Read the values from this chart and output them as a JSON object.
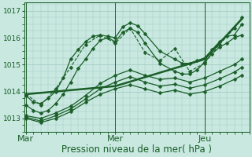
{
  "background_color": "#c8e8e0",
  "plot_bg_color": "#c8e8e0",
  "grid_major_color": "#a0c8c0",
  "grid_minor_color": "#a0c8c0",
  "line_color": "#1a5e28",
  "xlabel": "Pression niveau de la mer( hPa )",
  "xlabel_fontsize": 8.5,
  "ytick_values": [
    1013,
    1014,
    1015,
    1016,
    1017
  ],
  "ytick_fontsize": 6.5,
  "xtick_labels": [
    "Mar",
    "Mer",
    "Jeu"
  ],
  "xtick_positions": [
    0.0,
    1.0,
    2.0
  ],
  "xtick_fontsize": 8,
  "day_vlines": [
    0.0,
    1.0,
    2.0
  ],
  "xmin": -0.02,
  "xmax": 2.5,
  "ymin": 1012.5,
  "ymax": 1017.3,
  "series": [
    {
      "x": [
        0.0,
        0.083,
        0.167,
        0.25,
        0.333,
        0.417,
        0.5,
        0.583,
        0.667,
        0.75,
        0.833,
        0.917,
        1.0,
        1.083,
        1.167,
        1.25,
        1.333,
        1.5,
        1.667,
        1.75,
        1.833,
        1.917,
        2.0,
        2.083,
        2.167,
        2.25,
        2.333,
        2.417
      ],
      "y": [
        1013.85,
        1013.6,
        1013.55,
        1013.75,
        1014.0,
        1014.5,
        1015.2,
        1015.55,
        1015.85,
        1016.05,
        1016.1,
        1016.05,
        1016.0,
        1016.4,
        1016.55,
        1016.45,
        1016.15,
        1015.5,
        1015.2,
        1015.05,
        1015.05,
        1015.15,
        1015.25,
        1015.55,
        1015.85,
        1016.05,
        1016.1,
        1016.5
      ],
      "linestyle": "-",
      "linewidth": 0.9,
      "marker": "D",
      "markersize": 2.5,
      "zorder": 4
    },
    {
      "x": [
        0.0,
        0.167,
        0.333,
        0.5,
        0.667,
        0.833,
        1.0,
        1.167,
        1.333,
        1.5,
        1.667,
        1.833,
        2.0,
        2.167,
        2.333,
        2.417
      ],
      "y": [
        1013.9,
        1013.5,
        1014.1,
        1014.9,
        1015.75,
        1016.1,
        1015.8,
        1016.35,
        1015.45,
        1015.15,
        1015.6,
        1014.75,
        1015.05,
        1015.75,
        1016.35,
        1016.75
      ],
      "linestyle": "--",
      "linewidth": 0.8,
      "marker": "D",
      "markersize": 2.5,
      "zorder": 4
    },
    {
      "x": [
        0.0,
        0.083,
        0.167,
        0.25,
        0.333,
        0.417,
        0.5,
        0.583,
        0.667,
        0.75,
        0.833,
        0.917,
        1.0,
        1.083,
        1.167,
        1.25,
        1.333,
        1.5,
        1.667,
        1.75,
        1.833,
        1.917,
        2.0,
        2.083,
        2.167,
        2.25,
        2.333,
        2.417
      ],
      "y": [
        1013.5,
        1013.3,
        1013.2,
        1013.3,
        1013.55,
        1013.9,
        1014.35,
        1014.85,
        1015.2,
        1015.6,
        1015.9,
        1016.0,
        1015.85,
        1016.2,
        1016.35,
        1016.2,
        1015.8,
        1015.05,
        1014.75,
        1014.65,
        1014.65,
        1014.8,
        1015.1,
        1015.4,
        1015.65,
        1015.8,
        1016.0,
        1016.1
      ],
      "linestyle": "-",
      "linewidth": 0.9,
      "marker": "D",
      "markersize": 2.5,
      "zorder": 4
    },
    {
      "x": [
        0.0,
        0.167,
        0.333,
        0.5,
        0.667,
        0.833,
        1.0,
        1.167,
        1.333,
        1.5,
        1.667,
        1.833,
        2.0,
        2.167,
        2.333,
        2.417
      ],
      "y": [
        1013.1,
        1013.0,
        1013.2,
        1013.45,
        1013.85,
        1014.3,
        1014.6,
        1014.8,
        1014.6,
        1014.45,
        1014.5,
        1014.35,
        1014.5,
        1014.75,
        1015.0,
        1015.2
      ],
      "linestyle": "-",
      "linewidth": 0.9,
      "marker": "D",
      "markersize": 2.5,
      "zorder": 4
    },
    {
      "x": [
        0.0,
        0.167,
        0.333,
        0.5,
        0.667,
        0.833,
        1.0,
        1.167,
        1.333,
        1.5,
        1.667,
        1.833,
        2.0,
        2.167,
        2.333,
        2.417
      ],
      "y": [
        1013.0,
        1012.85,
        1013.0,
        1013.25,
        1013.6,
        1013.9,
        1014.1,
        1014.25,
        1014.1,
        1013.95,
        1014.05,
        1013.9,
        1014.0,
        1014.2,
        1014.45,
        1014.6
      ],
      "linestyle": "-",
      "linewidth": 0.9,
      "marker": "D",
      "markersize": 2.5,
      "zorder": 4
    },
    {
      "x": [
        0.0,
        0.167,
        0.333,
        0.5,
        0.667,
        0.833,
        1.0,
        1.167,
        1.333,
        1.5,
        1.667,
        1.833,
        2.0,
        2.167,
        2.333,
        2.417
      ],
      "y": [
        1013.05,
        1012.9,
        1013.1,
        1013.35,
        1013.72,
        1014.1,
        1014.35,
        1014.55,
        1014.35,
        1014.2,
        1014.27,
        1014.12,
        1014.25,
        1014.47,
        1014.72,
        1014.9
      ],
      "linestyle": "-",
      "linewidth": 0.9,
      "marker": "D",
      "markersize": 2.5,
      "zorder": 4
    },
    {
      "x": [
        0.0,
        0.5,
        1.0,
        1.5,
        2.0,
        2.417
      ],
      "y": [
        1013.9,
        1014.05,
        1014.2,
        1014.7,
        1015.2,
        1016.7
      ],
      "linestyle": "-",
      "linewidth": 1.8,
      "marker": "None",
      "markersize": 0,
      "zorder": 3
    }
  ]
}
